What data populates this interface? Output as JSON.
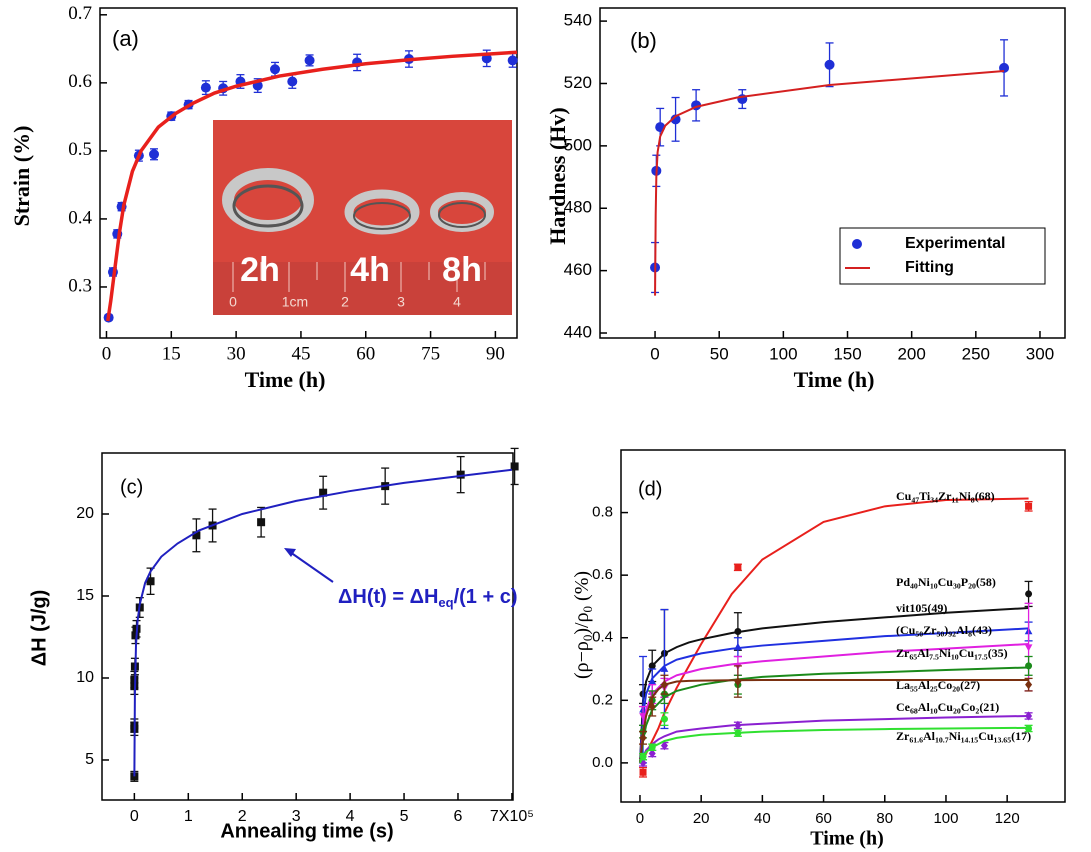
{
  "chart_data": [
    {
      "type": "scatter",
      "panel_label": "(a)",
      "x_label": "Time (h)",
      "y_label": "Strain (%)",
      "xlim": [
        -1.5,
        95
      ],
      "ylim": [
        0.225,
        0.71
      ],
      "xticks": [
        0,
        15,
        30,
        45,
        60,
        75,
        90
      ],
      "yticks": [
        0.3,
        0.4,
        0.5,
        0.6,
        0.7
      ],
      "series": [
        {
          "style": "markers",
          "marker": "circle",
          "color": "#1f2fd6",
          "x": [
            0.5,
            1.5,
            2.5,
            3.5,
            7.5,
            11,
            15,
            19,
            23,
            27,
            31,
            35,
            39,
            43,
            47,
            58,
            70,
            88,
            94
          ],
          "values": [
            0.255,
            0.322,
            0.378,
            0.418,
            0.493,
            0.495,
            0.551,
            0.568,
            0.593,
            0.592,
            0.602,
            0.596,
            0.62,
            0.602,
            0.633,
            0.63,
            0.635,
            0.636,
            0.633
          ],
          "errors": [
            0.004,
            0.006,
            0.006,
            0.006,
            0.008,
            0.008,
            0.006,
            0.006,
            0.01,
            0.01,
            0.01,
            0.01,
            0.01,
            0.01,
            0.008,
            0.012,
            0.012,
            0.012,
            0.01
          ]
        },
        {
          "style": "line",
          "color": "#e8201c",
          "x": [
            0.3,
            1,
            2,
            3,
            4,
            6,
            8,
            12,
            16,
            20,
            25,
            30,
            40,
            50,
            60,
            70,
            80,
            90,
            95
          ],
          "values": [
            0.25,
            0.28,
            0.33,
            0.38,
            0.42,
            0.47,
            0.5,
            0.535,
            0.555,
            0.57,
            0.585,
            0.595,
            0.61,
            0.62,
            0.628,
            0.634,
            0.639,
            0.643,
            0.645
          ]
        }
      ],
      "inset_labels": [
        "2h",
        "4h",
        "8h"
      ],
      "ruler_labels": [
        "0",
        "1cm",
        "2",
        "3",
        "4"
      ]
    },
    {
      "type": "scatter",
      "panel_label": "(b)",
      "x_label": "Time (h)",
      "y_label": "Hardness (Hv)",
      "xlim": [
        -42.9,
        319.5
      ],
      "ylim": [
        438.4,
        544.2
      ],
      "xticks": [
        0,
        50,
        100,
        150,
        200,
        250,
        300
      ],
      "yticks": [
        440,
        460,
        480,
        500,
        520,
        540
      ],
      "legend": true,
      "series": [
        {
          "name": "Experimental",
          "style": "markers",
          "marker": "circle",
          "color": "#1f2fd6",
          "x": [
            0,
            1,
            4,
            16,
            32,
            68,
            136,
            272
          ],
          "values": [
            461,
            492,
            506,
            508.5,
            513,
            515,
            526,
            525
          ],
          "errors": [
            8,
            5,
            6,
            7,
            5,
            3,
            7,
            9
          ]
        },
        {
          "name": "Fitting",
          "style": "line",
          "color": "#d42020",
          "x": [
            0,
            0.5,
            1,
            2,
            4,
            8,
            16,
            32,
            64,
            136,
            272
          ],
          "values": [
            452,
            478,
            490,
            498,
            503,
            506.5,
            509.5,
            512.5,
            515.5,
            519.5,
            524
          ]
        }
      ]
    },
    {
      "type": "scatter",
      "panel_label": "(c)",
      "x_label": "Annealing time (s)",
      "y_label": "ΔH (J/g)",
      "xlim": [
        -0.6,
        7.02
      ],
      "ylim": [
        2.56,
        23.72
      ],
      "xticks": [
        0,
        1,
        2,
        3,
        4,
        5,
        6,
        {
          "value": 7,
          "label": "7X10⁵"
        }
      ],
      "yticks": [
        5,
        10,
        15,
        20
      ],
      "annotation": [
        "ΔH(t) = ΔH",
        "eq",
        "/(1 + c)"
      ],
      "series": [
        {
          "style": "markers",
          "marker": "square",
          "color": "#111111",
          "x": [
            0,
            0,
            0,
            0,
            0,
            0.01,
            0.02,
            0.04,
            0.1,
            0.3,
            1.15,
            1.45,
            2.35,
            3.5,
            4.65,
            6.05,
            7.05
          ],
          "values": [
            4.0,
            6.9,
            7.1,
            9.5,
            9.9,
            10.7,
            12.6,
            13.0,
            14.3,
            15.9,
            18.7,
            19.3,
            19.5,
            21.3,
            21.7,
            22.4,
            22.9
          ],
          "errors": [
            0.3,
            0.4,
            0.4,
            0.5,
            0.5,
            0.5,
            0.5,
            0.5,
            0.6,
            0.8,
            1.0,
            1.0,
            0.9,
            1.0,
            1.1,
            1.1,
            1.1
          ]
        },
        {
          "style": "line",
          "color": "#2020c0",
          "x": [
            0,
            0.01,
            0.03,
            0.06,
            0.1,
            0.2,
            0.3,
            0.5,
            0.8,
            1.2,
            2,
            3,
            4,
            5,
            6,
            7
          ],
          "values": [
            4,
            9,
            12,
            13.5,
            14.5,
            15.8,
            16.5,
            17.4,
            18.2,
            19,
            20,
            20.8,
            21.4,
            21.9,
            22.3,
            22.7
          ]
        }
      ]
    },
    {
      "type": "scatter",
      "panel_label": "(d)",
      "x_label": "Time (h)",
      "y_label": [
        "(ρ−ρ",
        "0",
        ")/ρ",
        "0",
        " (%)"
      ],
      "xlim": [
        -6.2,
        138.9
      ],
      "ylim": [
        -0.125,
        1.0
      ],
      "xticks": [
        0,
        20,
        40,
        60,
        80,
        100,
        120
      ],
      "yticks": [
        {
          "value": 0,
          "label": "0.0"
        },
        0.2,
        0.4,
        0.6,
        0.8
      ],
      "fit_x": [
        0,
        1,
        2,
        4,
        6,
        8,
        12,
        16,
        20,
        30,
        40,
        60,
        80,
        100,
        127
      ],
      "series": [
        {
          "name": [
            "Cu",
            "47",
            "Ti",
            "34",
            "Zr",
            "11",
            "Ni",
            "8",
            "(68)"
          ],
          "color": "#e8201c",
          "marker": "square",
          "x": [
            1,
            32,
            127
          ],
          "values": [
            -0.03,
            0.625,
            0.82
          ],
          "errors": [
            0.015,
            0.01,
            0.015
          ],
          "fit_values": [
            0,
            0.01,
            0.03,
            0.07,
            0.11,
            0.16,
            0.24,
            0.31,
            0.38,
            0.54,
            0.65,
            0.77,
            0.82,
            0.84,
            0.845
          ]
        },
        {
          "name": [
            "Pd",
            "40",
            "Ni",
            "10",
            "Cu",
            "30",
            "P",
            "20",
            "(58)"
          ],
          "color": "#111111",
          "marker": "circle",
          "x": [
            1,
            4,
            8,
            32,
            127
          ],
          "values": [
            0.22,
            0.31,
            0.35,
            0.42,
            0.54
          ],
          "errors": [
            0.03,
            0.05,
            0.14,
            0.06,
            0.04
          ],
          "fit_values": [
            0,
            0.2,
            0.26,
            0.31,
            0.33,
            0.35,
            0.37,
            0.385,
            0.395,
            0.415,
            0.43,
            0.45,
            0.465,
            0.48,
            0.495
          ]
        },
        {
          "name": [
            "vit105(49)"
          ],
          "color": "#2030e0",
          "marker": "triangle",
          "x": [
            1,
            4,
            8,
            32,
            127
          ],
          "values": [
            0.17,
            0.26,
            0.3,
            0.37,
            0.42
          ],
          "errors": [
            0.17,
            0.04,
            0.19,
            0.03,
            0.03
          ],
          "fit_values": [
            0,
            0.15,
            0.22,
            0.27,
            0.29,
            0.31,
            0.33,
            0.34,
            0.35,
            0.365,
            0.375,
            0.39,
            0.405,
            0.415,
            0.43
          ]
        },
        {
          "name": [
            "(Cu",
            "50",
            "Zr",
            "50",
            ")",
            "92",
            "Al",
            "8",
            "(43)"
          ],
          "color": "#e020e0",
          "marker": "triangle-down",
          "x": [
            1,
            4,
            8,
            32,
            127
          ],
          "values": [
            0.15,
            0.22,
            0.24,
            0.31,
            0.37
          ],
          "errors": [
            0.03,
            0.03,
            0.03,
            0.03,
            0.14
          ],
          "fit_values": [
            0,
            0.11,
            0.17,
            0.22,
            0.24,
            0.26,
            0.28,
            0.29,
            0.3,
            0.315,
            0.325,
            0.34,
            0.355,
            0.365,
            0.38
          ]
        },
        {
          "name": [
            "Zr",
            "65",
            "Al",
            "7.5",
            "Ni",
            "10",
            "Cu",
            "17.5",
            "(35)"
          ],
          "color": "#1a8a1a",
          "marker": "circle",
          "x": [
            1,
            4,
            8,
            32,
            127
          ],
          "values": [
            0.1,
            0.2,
            0.22,
            0.25,
            0.31
          ],
          "errors": [
            0.02,
            0.03,
            0.03,
            0.03,
            0.03
          ],
          "fit_values": [
            0,
            0.07,
            0.12,
            0.17,
            0.19,
            0.21,
            0.23,
            0.24,
            0.25,
            0.265,
            0.275,
            0.285,
            0.29,
            0.297,
            0.305
          ]
        },
        {
          "name": [
            "La",
            "55",
            "Al",
            "25",
            "Co",
            "20",
            "(27)"
          ],
          "color": "#7a3010",
          "marker": "diamond",
          "x": [
            1,
            4,
            8,
            32,
            127
          ],
          "values": [
            0.08,
            0.18,
            0.25,
            0.26,
            0.25
          ],
          "errors": [
            0.02,
            0.03,
            0.03,
            0.05,
            0.02
          ],
          "fit_values": [
            0,
            0.09,
            0.15,
            0.21,
            0.235,
            0.25,
            0.26,
            0.262,
            0.263,
            0.264,
            0.265,
            0.265,
            0.265,
            0.265,
            0.265
          ]
        },
        {
          "name": [
            "Ce",
            "68",
            "Al",
            "10",
            "Cu",
            "20",
            "Co",
            "2",
            "(21)"
          ],
          "color": "#8a20d0",
          "marker": "diamond",
          "x": [
            1,
            4,
            8,
            32,
            127
          ],
          "values": [
            0.0,
            0.03,
            0.055,
            0.12,
            0.15
          ],
          "errors": [
            0.01,
            0.01,
            0.01,
            0.01,
            0.01
          ],
          "fit_values": [
            0,
            0.02,
            0.04,
            0.06,
            0.075,
            0.085,
            0.1,
            0.105,
            0.11,
            0.12,
            0.125,
            0.135,
            0.14,
            0.145,
            0.15
          ]
        },
        {
          "name": [
            "Zr",
            "61.6",
            "Al",
            "10.7",
            "Ni",
            "14.15",
            "Cu",
            "13.65",
            "(17)"
          ],
          "color": "#30e030",
          "marker": "circle",
          "x": [
            1,
            4,
            8,
            32,
            127
          ],
          "values": [
            0.02,
            0.05,
            0.14,
            0.095,
            0.11
          ],
          "errors": [
            0.01,
            0.01,
            0.02,
            0.01,
            0.01
          ],
          "fit_values": [
            0,
            0.02,
            0.035,
            0.05,
            0.06,
            0.07,
            0.08,
            0.085,
            0.09,
            0.095,
            0.1,
            0.105,
            0.108,
            0.11,
            0.112
          ]
        }
      ]
    }
  ]
}
